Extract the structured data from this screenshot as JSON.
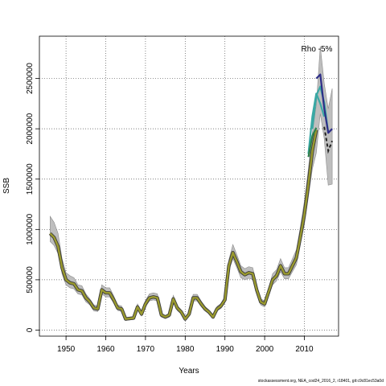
{
  "chart_data": {
    "type": "line",
    "xlabel": "Years",
    "ylabel": "SSB",
    "annotation": "Rho -5%",
    "source": "stockassessment.org, NEA_cod24_2016_2, r18401, git:c9c81ec53a0d",
    "xlim": [
      1943.3,
      2018.6
    ],
    "ylim": [
      -60000,
      2920000
    ],
    "x_ticks": [
      1950,
      1960,
      1970,
      1980,
      1990,
      2000,
      2010
    ],
    "y_ticks": [
      0,
      500000,
      1000000,
      1500000,
      2000000,
      2500000
    ],
    "grid": true,
    "colors": {
      "band": "#bebebe",
      "band_outline": "#8c8c8c",
      "main_line": "#9a9a2e",
      "main_outline": "#3c3c3c",
      "peel_2016": "#2e2e88",
      "peel_2015": "#3aa8a4",
      "peel_2014": "#2e7e4a",
      "projection": "#222222"
    },
    "series": [
      {
        "x": [
          1946,
          1947,
          1948,
          1949,
          1950,
          1951,
          1952,
          1953,
          1954,
          1955,
          1956,
          1957,
          1958,
          1959,
          1960,
          1961,
          1962,
          1963,
          1964,
          1965,
          1966,
          1967,
          1968,
          1969,
          1970,
          1971,
          1972,
          1973,
          1974,
          1975,
          1976,
          1977,
          1978,
          1979,
          1980,
          1981,
          1982,
          1983,
          1984,
          1985,
          1986,
          1987,
          1988,
          1989,
          1990,
          1991,
          1992,
          1993,
          1994,
          1995,
          1996,
          1997,
          1998,
          1999,
          2000,
          2001,
          2002,
          2003,
          2004,
          2005,
          2006,
          2007,
          2008,
          2009,
          2010,
          2011,
          2012,
          2013
        ],
        "y": [
          960000,
          920000,
          830000,
          620000,
          500000,
          470000,
          460000,
          400000,
          390000,
          320000,
          280000,
          220000,
          210000,
          400000,
          370000,
          370000,
          300000,
          220000,
          210000,
          110000,
          115000,
          120000,
          230000,
          160000,
          260000,
          320000,
          330000,
          320000,
          150000,
          130000,
          150000,
          310000,
          220000,
          180000,
          110000,
          160000,
          320000,
          320000,
          260000,
          210000,
          180000,
          130000,
          210000,
          240000,
          300000,
          640000,
          770000,
          680000,
          580000,
          550000,
          570000,
          560000,
          400000,
          280000,
          260000,
          380000,
          500000,
          540000,
          640000,
          560000,
          560000,
          640000,
          720000,
          930000,
          1150000,
          1450000,
          1780000,
          1990000
        ],
        "lower": [
          880000,
          840000,
          760000,
          560000,
          450000,
          420000,
          410000,
          360000,
          350000,
          280000,
          250000,
          190000,
          185000,
          360000,
          330000,
          330000,
          270000,
          195000,
          185000,
          95000,
          100000,
          105000,
          205000,
          140000,
          230000,
          290000,
          300000,
          290000,
          130000,
          115000,
          130000,
          280000,
          195000,
          160000,
          95000,
          140000,
          290000,
          290000,
          235000,
          190000,
          160000,
          115000,
          190000,
          215000,
          270000,
          590000,
          710000,
          620000,
          520000,
          500000,
          515000,
          505000,
          355000,
          250000,
          230000,
          340000,
          450000,
          490000,
          580000,
          510000,
          510000,
          580000,
          650000,
          850000,
          1050000,
          1320000,
          1600000,
          1760000
        ],
        "upper": [
          1130000,
          1070000,
          960000,
          710000,
          570000,
          540000,
          520000,
          450000,
          440000,
          360000,
          310000,
          250000,
          240000,
          450000,
          420000,
          420000,
          340000,
          250000,
          240000,
          125000,
          130000,
          135000,
          260000,
          180000,
          295000,
          360000,
          370000,
          360000,
          170000,
          145000,
          170000,
          345000,
          245000,
          200000,
          125000,
          180000,
          355000,
          355000,
          290000,
          235000,
          200000,
          145000,
          235000,
          265000,
          335000,
          700000,
          850000,
          750000,
          640000,
          610000,
          630000,
          620000,
          445000,
          310000,
          290000,
          420000,
          560000,
          600000,
          710000,
          620000,
          620000,
          710000,
          800000,
          1030000,
          1280000,
          1600000,
          1960000,
          2240000
        ]
      },
      {
        "name": "",
        "x": [
          2012,
          2013,
          2014,
          2015,
          2016
        ],
        "y": [
          2000000,
          2330000,
          2420000,
          2260000,
          1960000
        ]
      },
      {
        "name": "",
        "x": [
          2011,
          2012,
          2013,
          2014,
          2015
        ],
        "y": [
          1750000,
          2120000,
          2350000,
          2250000,
          2120000
        ]
      },
      {
        "name": "",
        "x": [
          2011,
          2012,
          2013
        ],
        "y": [
          1720000,
          1930000,
          2010000
        ]
      },
      {
        "name": "",
        "x": [
          2013,
          2014,
          2015,
          2016,
          2017
        ],
        "y": [
          2500000,
          2540000,
          2200000,
          1960000,
          2000000
        ]
      }
    ],
    "upper_band_extension": {
      "x": [
        2012,
        2013,
        2014,
        2015,
        2016,
        2017
      ],
      "upper": [
        2300000,
        2790000,
        2820000,
        2450000,
        2200000,
        2400000
      ],
      "lower": [
        1820000,
        2050000,
        2150000,
        1900000,
        1440000,
        1450000
      ]
    },
    "projection": {
      "x": [
        2015,
        2016,
        2017
      ],
      "y": [
        2020000,
        1780000,
        1880000
      ]
    }
  }
}
